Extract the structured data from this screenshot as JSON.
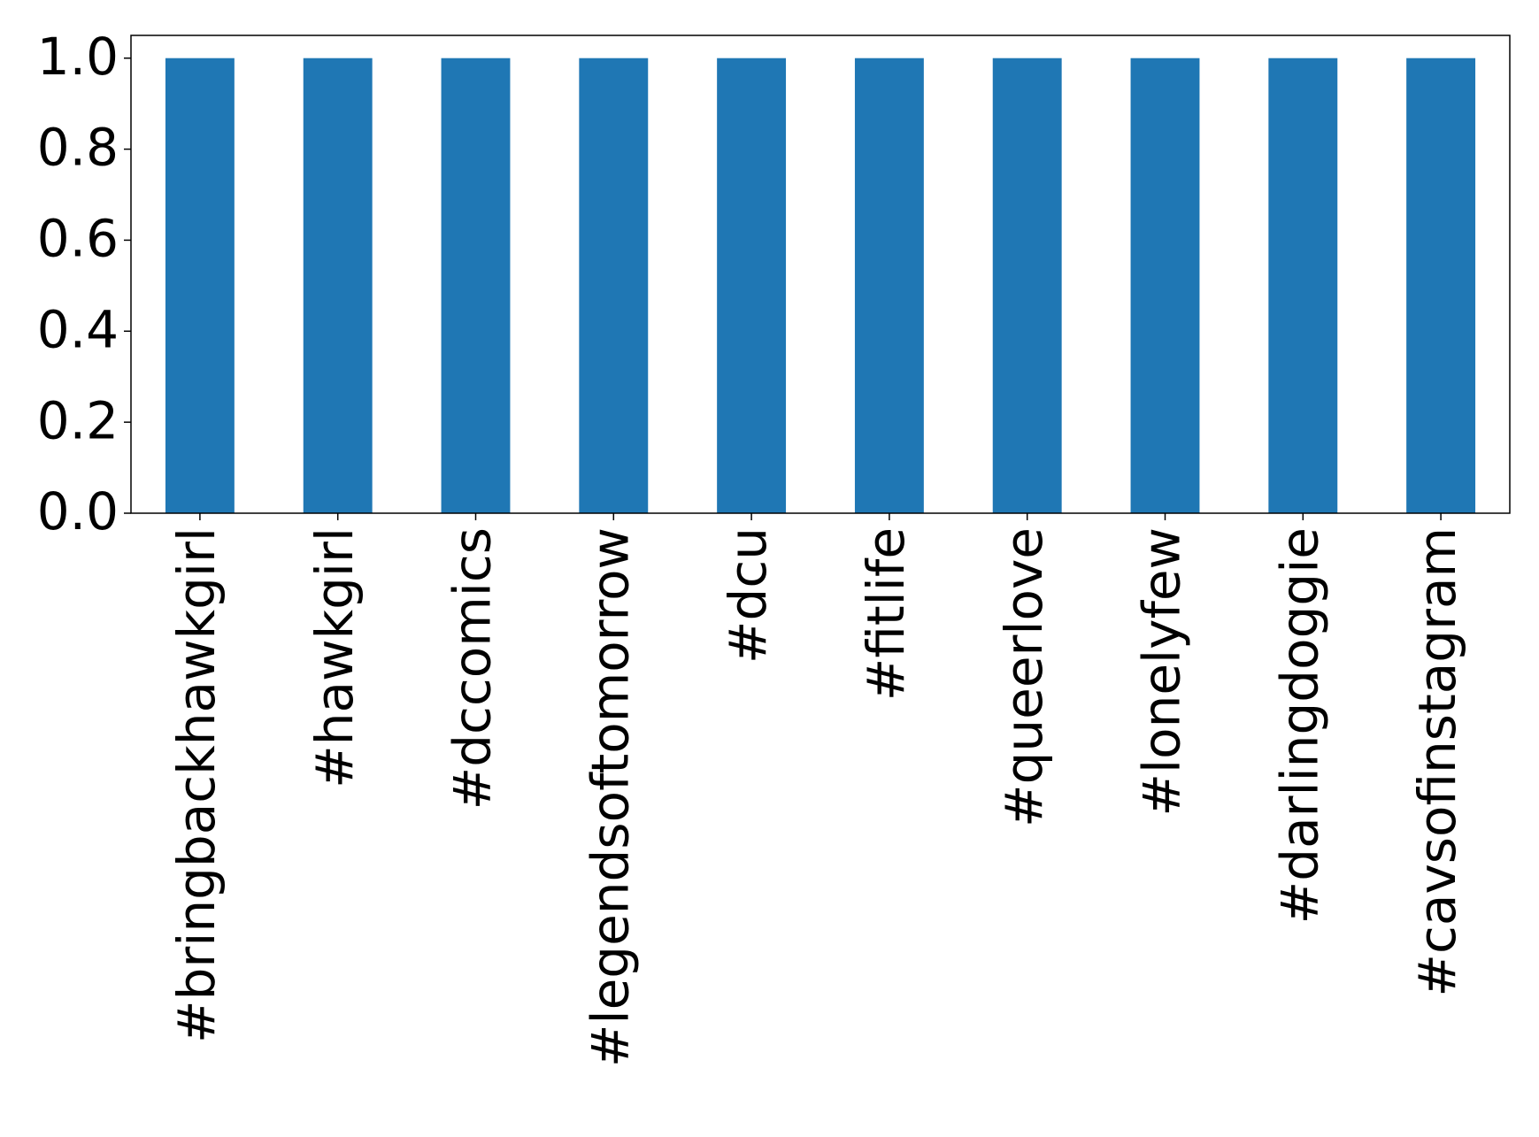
{
  "chart_data": {
    "type": "bar",
    "categories": [
      "#bringbackhawkgirl",
      "#hawkgirl",
      "#dccomics",
      "#legendsoftomorrow",
      "#dcu",
      "#fitlife",
      "#queerlove",
      "#lonelyfew",
      "#darlingdoggie",
      "#cavsofinstagram"
    ],
    "values": [
      1,
      1,
      1,
      1,
      1,
      1,
      1,
      1,
      1,
      1
    ],
    "color": "#1f77b4",
    "ylim": [
      0,
      1.05
    ],
    "yticks": [
      {
        "value": 0,
        "label": "0.0"
      },
      0.2,
      0.4,
      0.6,
      0.8,
      {
        "value": 1,
        "label": "1.0"
      }
    ],
    "grid": false
  }
}
